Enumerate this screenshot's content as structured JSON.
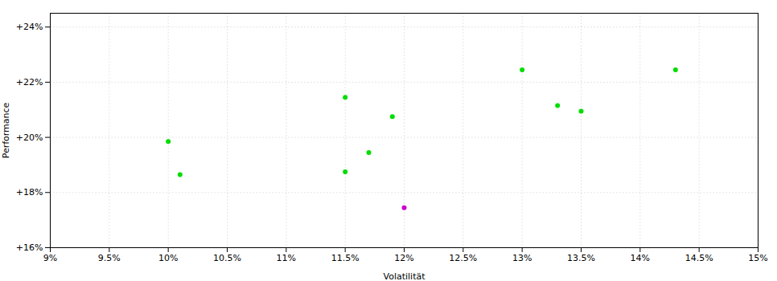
{
  "chart_data": {
    "type": "scatter",
    "xlabel": "Volatilität",
    "ylabel": "Performance",
    "xlim": [
      0.09,
      0.15
    ],
    "ylim": [
      0.16,
      0.245
    ],
    "xticks": [
      {
        "value": 0.09,
        "label": "9%"
      },
      {
        "value": 0.095,
        "label": "9.5%"
      },
      {
        "value": 0.1,
        "label": "10%"
      },
      {
        "value": 0.105,
        "label": "10.5%"
      },
      {
        "value": 0.11,
        "label": "11%"
      },
      {
        "value": 0.115,
        "label": "11.5%"
      },
      {
        "value": 0.12,
        "label": "12%"
      },
      {
        "value": 0.125,
        "label": "12.5%"
      },
      {
        "value": 0.13,
        "label": "13%"
      },
      {
        "value": 0.135,
        "label": "13.5%"
      },
      {
        "value": 0.14,
        "label": "14%"
      },
      {
        "value": 0.145,
        "label": "14.5%"
      },
      {
        "value": 0.15,
        "label": "15%"
      }
    ],
    "yticks": [
      {
        "value": 0.16,
        "label": "+16%"
      },
      {
        "value": 0.18,
        "label": "+18%"
      },
      {
        "value": 0.2,
        "label": "+20%"
      },
      {
        "value": 0.22,
        "label": "+22%"
      },
      {
        "value": 0.24,
        "label": "+24%"
      }
    ],
    "grid": true,
    "series": [
      {
        "color": "#00dd00",
        "marker": "circle",
        "x": [
          0.1,
          0.101,
          0.115,
          0.115,
          0.117,
          0.119,
          0.13,
          0.133,
          0.135,
          0.143
        ],
        "y": [
          0.1985,
          0.1865,
          0.2145,
          0.1875,
          0.1945,
          0.2075,
          0.2245,
          0.2115,
          0.2095,
          0.2245
        ]
      },
      {
        "color": "#cc00cc",
        "marker": "circle",
        "x": [
          0.12
        ],
        "y": [
          0.1745
        ]
      }
    ]
  }
}
